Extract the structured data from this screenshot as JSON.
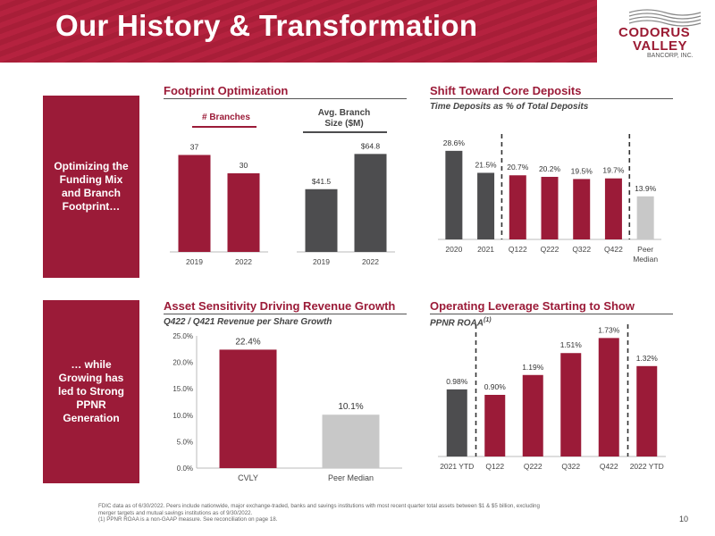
{
  "header": {
    "title": "Our History & Transformation"
  },
  "logo": {
    "line1": "CODORUS",
    "line2": "VALLEY",
    "line3": "BANCORP, INC."
  },
  "sidebar": {
    "top": [
      "Optimizing the",
      "Funding Mix",
      "and Branch",
      "Footprint…"
    ],
    "bottom": [
      "… while",
      "Growing has",
      "led to Strong",
      "PPNR",
      "Generation"
    ]
  },
  "sections": {
    "footprint": {
      "title": "Footprint Optimization",
      "branches_label": "# Branches",
      "size_label_1": "Avg. Branch",
      "size_label_2": "Size ($M)"
    },
    "deposits": {
      "title": "Shift Toward Core Deposits",
      "subtitle": "Time Deposits as % of Total Deposits"
    },
    "asset": {
      "title": "Asset Sensitivity Driving Revenue Growth",
      "subtitle": "Q422 / Q421 Revenue per Share Growth"
    },
    "leverage": {
      "title": "Operating Leverage Starting to Show",
      "subtitle": "PPNR ROAA",
      "subtitle_sup": "(1)"
    }
  },
  "chart_data": [
    {
      "type": "bar",
      "title": "# Branches",
      "categories": [
        "2019",
        "2022"
      ],
      "values": [
        37,
        30
      ],
      "labels": [
        "37",
        "30"
      ],
      "colors": [
        "#9b1b38",
        "#9b1b38"
      ],
      "ylim": [
        0,
        45
      ]
    },
    {
      "type": "bar",
      "title": "Avg. Branch Size ($M)",
      "categories": [
        "2019",
        "2022"
      ],
      "values": [
        41.5,
        64.8
      ],
      "labels": [
        "$41.5",
        "$64.8"
      ],
      "colors": [
        "#4d4d4f",
        "#4d4d4f"
      ],
      "ylim": [
        0,
        78
      ]
    },
    {
      "type": "bar",
      "title": "Time Deposits as % of Total Deposits",
      "categories": [
        "2020",
        "2021",
        "Q122",
        "Q222",
        "Q322",
        "Q422",
        "Peer Median"
      ],
      "values": [
        28.6,
        21.5,
        20.7,
        20.2,
        19.5,
        19.7,
        13.9
      ],
      "labels": [
        "28.6%",
        "21.5%",
        "20.7%",
        "20.2%",
        "19.5%",
        "19.7%",
        "13.9%"
      ],
      "colors": [
        "#4d4d4f",
        "#4d4d4f",
        "#9b1b38",
        "#9b1b38",
        "#9b1b38",
        "#9b1b38",
        "#c8c8c8"
      ],
      "ylim": [
        0,
        30
      ]
    },
    {
      "type": "bar",
      "title": "Q422 / Q421 Revenue per Share Growth",
      "categories": [
        "CVLY",
        "Peer Median"
      ],
      "values": [
        22.4,
        10.1
      ],
      "labels": [
        "22.4%",
        "10.1%"
      ],
      "colors": [
        "#9b1b38",
        "#c8c8c8"
      ],
      "ylim": [
        0,
        25
      ],
      "yticks": [
        "0.0%",
        "5.0%",
        "10.0%",
        "15.0%",
        "20.0%",
        "25.0%"
      ]
    },
    {
      "type": "bar",
      "title": "PPNR ROAA",
      "categories": [
        "2021 YTD",
        "Q122",
        "Q222",
        "Q322",
        "Q422",
        "2022 YTD"
      ],
      "values": [
        0.98,
        0.9,
        1.19,
        1.51,
        1.73,
        1.32
      ],
      "labels": [
        "0.98%",
        "0.90%",
        "1.19%",
        "1.51%",
        "1.73%",
        "1.32%"
      ],
      "colors": [
        "#4d4d4f",
        "#9b1b38",
        "#9b1b38",
        "#9b1b38",
        "#9b1b38",
        "#9b1b38"
      ],
      "ylim": [
        0,
        1.8
      ]
    }
  ],
  "footnote": [
    "FDIC data as of 6/30/2022. Peers include nationwide, major exchange-traded, banks and savings institutions with most recent quarter total assets between $1 & $5 billion, excluding",
    "merger targets and mutual savings institutions as of 9/30/2022.",
    "(1) PPNR ROAA is a non-GAAP measure.  See reconciliation on page 18."
  ],
  "page_number": "10"
}
